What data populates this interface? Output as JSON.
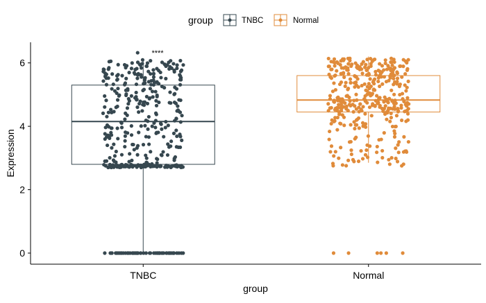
{
  "chart_data": {
    "type": "box",
    "ylabel": "Expression",
    "xlabel": "group",
    "ylim": [
      -0.35,
      6.65
    ],
    "yticks": [
      0,
      2,
      4,
      6
    ],
    "categories": [
      "TNBC",
      "Normal"
    ],
    "legend": {
      "title": "group",
      "position": "top",
      "entries": [
        "TNBC",
        "Normal"
      ]
    },
    "colors": {
      "TNBC": "#36474f",
      "Normal": "#e08b3a"
    },
    "significance": "****",
    "series": [
      {
        "name": "TNBC",
        "box": {
          "min": 0,
          "q1": 2.8,
          "median": 4.15,
          "q3": 5.3,
          "max": 6.1
        },
        "points": {
          "zeros": 60,
          "range": [
            2.7,
            6.1
          ],
          "count": 380,
          "max_outlier": 6.32
        }
      },
      {
        "name": "Normal",
        "box": {
          "min": 2.85,
          "q1": 4.45,
          "median": 4.83,
          "q3": 5.6,
          "max": 6.2
        },
        "points": {
          "zeros": 6,
          "range": [
            2.75,
            6.15
          ],
          "count": 400
        }
      }
    ]
  }
}
